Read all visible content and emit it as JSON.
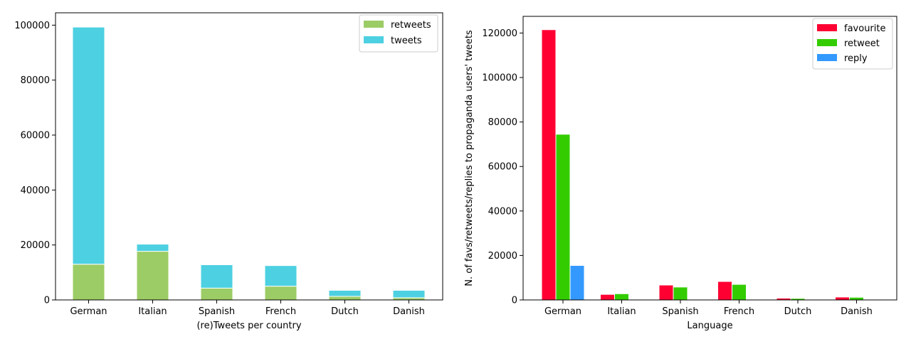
{
  "chart_data": [
    {
      "type": "bar",
      "stacked": true,
      "categories": [
        "German",
        "Italian",
        "Spanish",
        "French",
        "Dutch",
        "Danish"
      ],
      "series": [
        {
          "name": "retweets",
          "color": "#9ccc65",
          "values": [
            13000,
            17700,
            4300,
            5000,
            1300,
            800
          ]
        },
        {
          "name": "tweets",
          "color": "#4dd0e1",
          "values": [
            86300,
            2600,
            8500,
            7500,
            2200,
            2700
          ]
        }
      ],
      "title": "",
      "xlabel": "(re)Tweets per country",
      "ylabel": "",
      "ylim": [
        0,
        104500
      ],
      "yticks": [
        0,
        20000,
        40000,
        60000,
        80000,
        100000
      ],
      "ytick_labels": [
        "0",
        "20000",
        "40000",
        "60000",
        "80000",
        "100000"
      ],
      "grid": false,
      "legend": "top-right"
    },
    {
      "type": "bar",
      "stacked": false,
      "categories": [
        "German",
        "Italian",
        "Spanish",
        "French",
        "Dutch",
        "Danish"
      ],
      "series": [
        {
          "name": "favourite",
          "color": "#ff0033",
          "values": [
            121500,
            2500,
            6700,
            8300,
            800,
            1300
          ]
        },
        {
          "name": "retweet",
          "color": "#33cc00",
          "values": [
            74500,
            2800,
            5800,
            7000,
            700,
            1200
          ]
        },
        {
          "name": "reply",
          "color": "#3399ff",
          "values": [
            15500,
            100,
            300,
            300,
            50,
            80
          ]
        }
      ],
      "title": "",
      "xlabel": "Language",
      "ylabel": "N. of favs/retweets/replies to propaganda users' tweets",
      "ylim": [
        0,
        127500
      ],
      "yticks": [
        0,
        20000,
        40000,
        60000,
        80000,
        100000,
        120000
      ],
      "ytick_labels": [
        "0",
        "20000",
        "40000",
        "60000",
        "80000",
        "100000",
        "120000"
      ],
      "grid": false,
      "legend": "top-right"
    }
  ]
}
